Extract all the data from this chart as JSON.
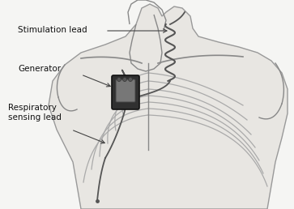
{
  "bg_color": "#f5f5f3",
  "body_fill": "#e8e6e2",
  "body_edge": "#999999",
  "line_color": "#aaaaaa",
  "dark_line": "#888888",
  "device_dark": "#303030",
  "device_mid": "#666666",
  "device_light": "#999999",
  "lead_color": "#555555",
  "text_color": "#111111",
  "arrow_color": "#444444",
  "labels": {
    "stimulation_lead": "Stimulation lead",
    "generator": "Generator",
    "respiratory": "Respiratory\nsensing lead"
  },
  "figsize": [
    3.63,
    2.58
  ],
  "dpi": 100
}
